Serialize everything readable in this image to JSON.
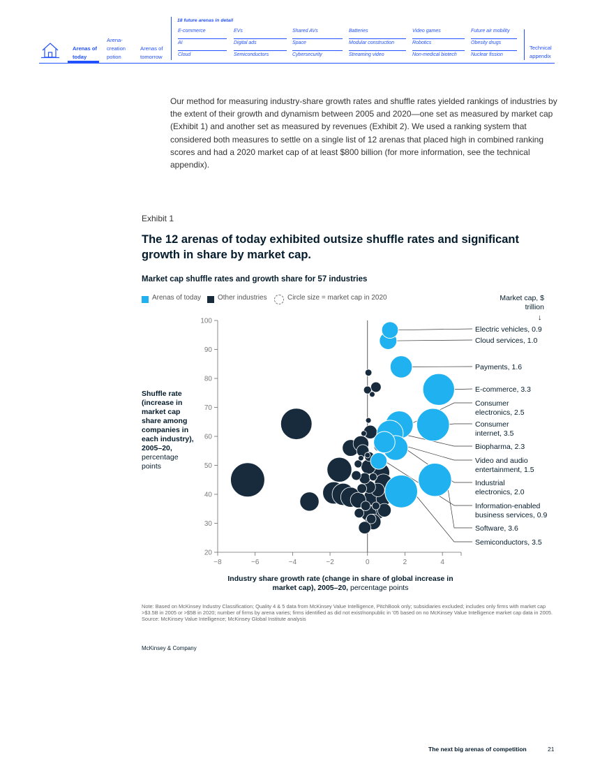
{
  "nav": {
    "tabs": [
      "Arenas of today",
      "Arena-creation potion",
      "Arenas of tomorrow"
    ],
    "future_title": "18 future arenas in detail",
    "future_arenas": [
      [
        "E-commerce",
        "EVs",
        "Shared AVs",
        "Batteries",
        "Video games",
        "Future air mobility"
      ],
      [
        "AI",
        "Digital ads",
        "Space",
        "Modular construction",
        "Robotics",
        "Obesity drugs"
      ],
      [
        "Cloud",
        "Semiconductors",
        "Cybersecurity",
        "Streaming video",
        "Non-medical biotech",
        "Nuclear fission"
      ]
    ],
    "technical_appendix": "Technical appendix"
  },
  "intro": "Our method for measuring industry-share growth rates and shuffle rates yielded rankings of industries by the extent of their growth and dynamism between 2005 and 2020—one set as measured by market cap (Exhibit 1) and another set as measured by revenues (Exhibit 2). We used a ranking system that considered both measures to settle on a single list of 12 arenas that placed high in combined ranking scores and had a 2020 market cap of at least $800 billion (for more information, see the technical appendix).",
  "exhibit_label": "Exhibit 1",
  "exhibit_title": "The 12 arenas of today exhibited outsize shuffle rates and significant growth in share by market cap.",
  "legend": {
    "arenas": "Arenas of today",
    "other": "Other industries",
    "circle_note": "Circle size = market cap in 2020"
  },
  "size_note": "Market cap, $ trillion",
  "size_arrow": "↓",
  "y_title_bold": "Shuffle rate (increase in market cap share among companies in each industry), 2005–20,",
  "y_title_rest": "percentage points",
  "x_title_bold": "Industry share growth rate (change in share of global increase in market cap), 2005–20,",
  "x_title_rest": "percentage points",
  "colors": {
    "arenas": "#1fb1f0",
    "other": "#172b3d",
    "axis": "#6b6b6b",
    "text": "#051c2c"
  },
  "chart_data": {
    "type": "scatter",
    "title": "Market cap shuffle rates and growth share for 57 industries",
    "xlabel": "Industry share growth rate (change in share of global increase in market cap), 2005–20, percentage points",
    "ylabel": "Shuffle rate (increase in market cap share among companies in each industry), 2005–20, percentage points",
    "xlim": [
      -8,
      5
    ],
    "ylim": [
      20,
      100
    ],
    "x_ticks": [
      "−8",
      "−6",
      "−4",
      "−2",
      "0",
      "2",
      "4"
    ],
    "x_tick_values": [
      -8,
      -6,
      -4,
      -2,
      0,
      2,
      4
    ],
    "y_ticks": [
      20,
      30,
      40,
      50,
      60,
      70,
      80,
      90,
      100
    ],
    "size_encoding": "market cap in 2020, $ trillion",
    "arenas_of_today": [
      {
        "name": "Electric vehicles, 0.9",
        "x": 1.2,
        "y": 96.7,
        "size": 0.9
      },
      {
        "name": "Cloud services, 1.0",
        "x": 1.1,
        "y": 93.0,
        "size": 1.0
      },
      {
        "name": "Payments, 1.6",
        "x": 1.8,
        "y": 84.0,
        "size": 1.6
      },
      {
        "name": "E-commerce, 3.3",
        "x": 3.8,
        "y": 76.2,
        "size": 3.3
      },
      {
        "name": "Consumer electronics, 2.5",
        "x": 1.7,
        "y": 64.0,
        "size": 2.5
      },
      {
        "name": "Consumer internet, 3.5",
        "x": 3.5,
        "y": 64.0,
        "size": 3.5
      },
      {
        "name": "Biopharma, 2.3",
        "x": 1.2,
        "y": 61.0,
        "size": 2.3
      },
      {
        "name": "Video and audio entertainment, 1.5",
        "x": 0.9,
        "y": 58.0,
        "size": 1.5
      },
      {
        "name": "Industrial electronics, 2.0",
        "x": 1.5,
        "y": 56.0,
        "size": 2.0
      },
      {
        "name": "Information-enabled business services, 0.9",
        "x": 0.6,
        "y": 51.5,
        "size": 0.9
      },
      {
        "name": "Software, 3.6",
        "x": 3.6,
        "y": 45.0,
        "size": 3.6
      },
      {
        "name": "Semiconductors, 3.5",
        "x": 1.8,
        "y": 41.0,
        "size": 3.5
      }
    ],
    "other_industries": [
      {
        "x": -6.4,
        "y": 45.0,
        "size": 3.8
      },
      {
        "x": -3.8,
        "y": 64.3,
        "size": 3.2
      },
      {
        "x": -3.1,
        "y": 37.5,
        "size": 1.2
      },
      {
        "x": -1.5,
        "y": 48.5,
        "size": 2.0
      },
      {
        "x": -1.8,
        "y": 40.5,
        "size": 1.6
      },
      {
        "x": -1.3,
        "y": 40.0,
        "size": 1.6
      },
      {
        "x": -0.9,
        "y": 39.0,
        "size": 1.3
      },
      {
        "x": -0.5,
        "y": 38.0,
        "size": 0.8
      },
      {
        "x": -0.9,
        "y": 56.0,
        "size": 0.9
      },
      {
        "x": -0.35,
        "y": 57.5,
        "size": 0.8
      },
      {
        "x": 0.15,
        "y": 61.5,
        "size": 0.6
      },
      {
        "x": 0.05,
        "y": 65.5,
        "size": 0.1
      },
      {
        "x": 0.05,
        "y": 82.0,
        "size": 0.15
      },
      {
        "x": 0.0,
        "y": 76.0,
        "size": 0.2
      },
      {
        "x": 0.45,
        "y": 77.0,
        "size": 0.35
      },
      {
        "x": 0.25,
        "y": 74.5,
        "size": 0.1
      },
      {
        "x": -0.25,
        "y": 55.0,
        "size": 0.5
      },
      {
        "x": 0.1,
        "y": 53.0,
        "size": 0.3
      },
      {
        "x": -0.5,
        "y": 50.5,
        "size": 0.2
      },
      {
        "x": 0.05,
        "y": 49.5,
        "size": 0.7
      },
      {
        "x": 0.65,
        "y": 47.5,
        "size": 1.3
      },
      {
        "x": 0.85,
        "y": 44.0,
        "size": 1.0
      },
      {
        "x": -0.15,
        "y": 45.5,
        "size": 0.4
      },
      {
        "x": -0.6,
        "y": 46.5,
        "size": 0.3
      },
      {
        "x": 0.1,
        "y": 42.5,
        "size": 0.5
      },
      {
        "x": 0.55,
        "y": 41.5,
        "size": 0.6
      },
      {
        "x": 0.25,
        "y": 39.0,
        "size": 0.9
      },
      {
        "x": 0.85,
        "y": 38.5,
        "size": 0.7
      },
      {
        "x": 0.5,
        "y": 34.5,
        "size": 1.1
      },
      {
        "x": 0.9,
        "y": 34.5,
        "size": 0.6
      },
      {
        "x": 0.05,
        "y": 33.5,
        "size": 0.8
      },
      {
        "x": -0.45,
        "y": 33.5,
        "size": 0.3
      },
      {
        "x": 0.3,
        "y": 30.5,
        "size": 0.8
      },
      {
        "x": -0.15,
        "y": 28.5,
        "size": 0.5
      },
      {
        "x": -0.3,
        "y": 42.0,
        "size": 0.3
      },
      {
        "x": -0.1,
        "y": 36.0,
        "size": 0.3
      },
      {
        "x": 0.45,
        "y": 36.0,
        "size": 0.2
      },
      {
        "x": 0.2,
        "y": 31.5,
        "size": 0.3
      },
      {
        "x": 0.7,
        "y": 57.0,
        "size": 0.15
      },
      {
        "x": 0.6,
        "y": 56.5,
        "size": 0.3
      },
      {
        "x": 0.35,
        "y": 51.5,
        "size": 0.15
      },
      {
        "x": -0.2,
        "y": 61.0,
        "size": 0.1
      },
      {
        "x": 0.0,
        "y": 53.5,
        "size": 0.1
      },
      {
        "x": 0.3,
        "y": 46.0,
        "size": 0.2
      },
      {
        "x": -0.35,
        "y": 52.5,
        "size": 0.1
      }
    ]
  },
  "note": "Note: Based on McKinsey Industry Classification; Quality 4 & 5 data from McKinsey Value Intelligence, PitchBook only; subsidiaries excluded; includes only firms with market cap >$3.5B in 2005 or >$5B in 2020; number of firms by arena varies; firms identified as did not exist/nonpublic in ’05 based on no McKinsey Value Intelligence market cap data in 2005.",
  "source": "Source: McKinsey Value Intelligence; McKinsey Global Institute analysis",
  "footer_brand": "McKinsey & Company",
  "footer_title": "The next big arenas of competition",
  "footer_page": "21"
}
